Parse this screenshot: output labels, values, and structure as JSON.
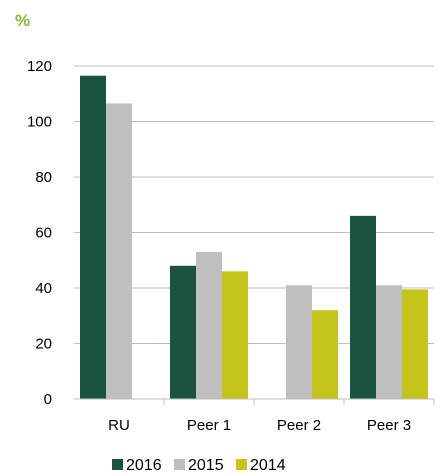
{
  "chart_data": {
    "type": "bar",
    "unit_label": "%",
    "categories": [
      "RU",
      "Peer 1",
      "Peer 2",
      "Peer 3"
    ],
    "series": [
      {
        "name": "2016",
        "color": "#1a5441",
        "values": [
          116.5,
          48,
          null,
          66
        ]
      },
      {
        "name": "2015",
        "color": "#bfbfbf",
        "values": [
          106.5,
          53,
          41,
          41
        ]
      },
      {
        "name": "2014",
        "color": "#c5c41d",
        "values": [
          null,
          46,
          32,
          39.5
        ]
      }
    ],
    "ylim": [
      0,
      120
    ],
    "yticks": [
      0,
      20,
      40,
      60,
      80,
      100,
      120
    ],
    "grid": true,
    "legend_position": "bottom",
    "colors": {
      "unit_label": "#8db33b",
      "grid": "#bfbfbf",
      "axis": "#bfbfbf"
    }
  }
}
